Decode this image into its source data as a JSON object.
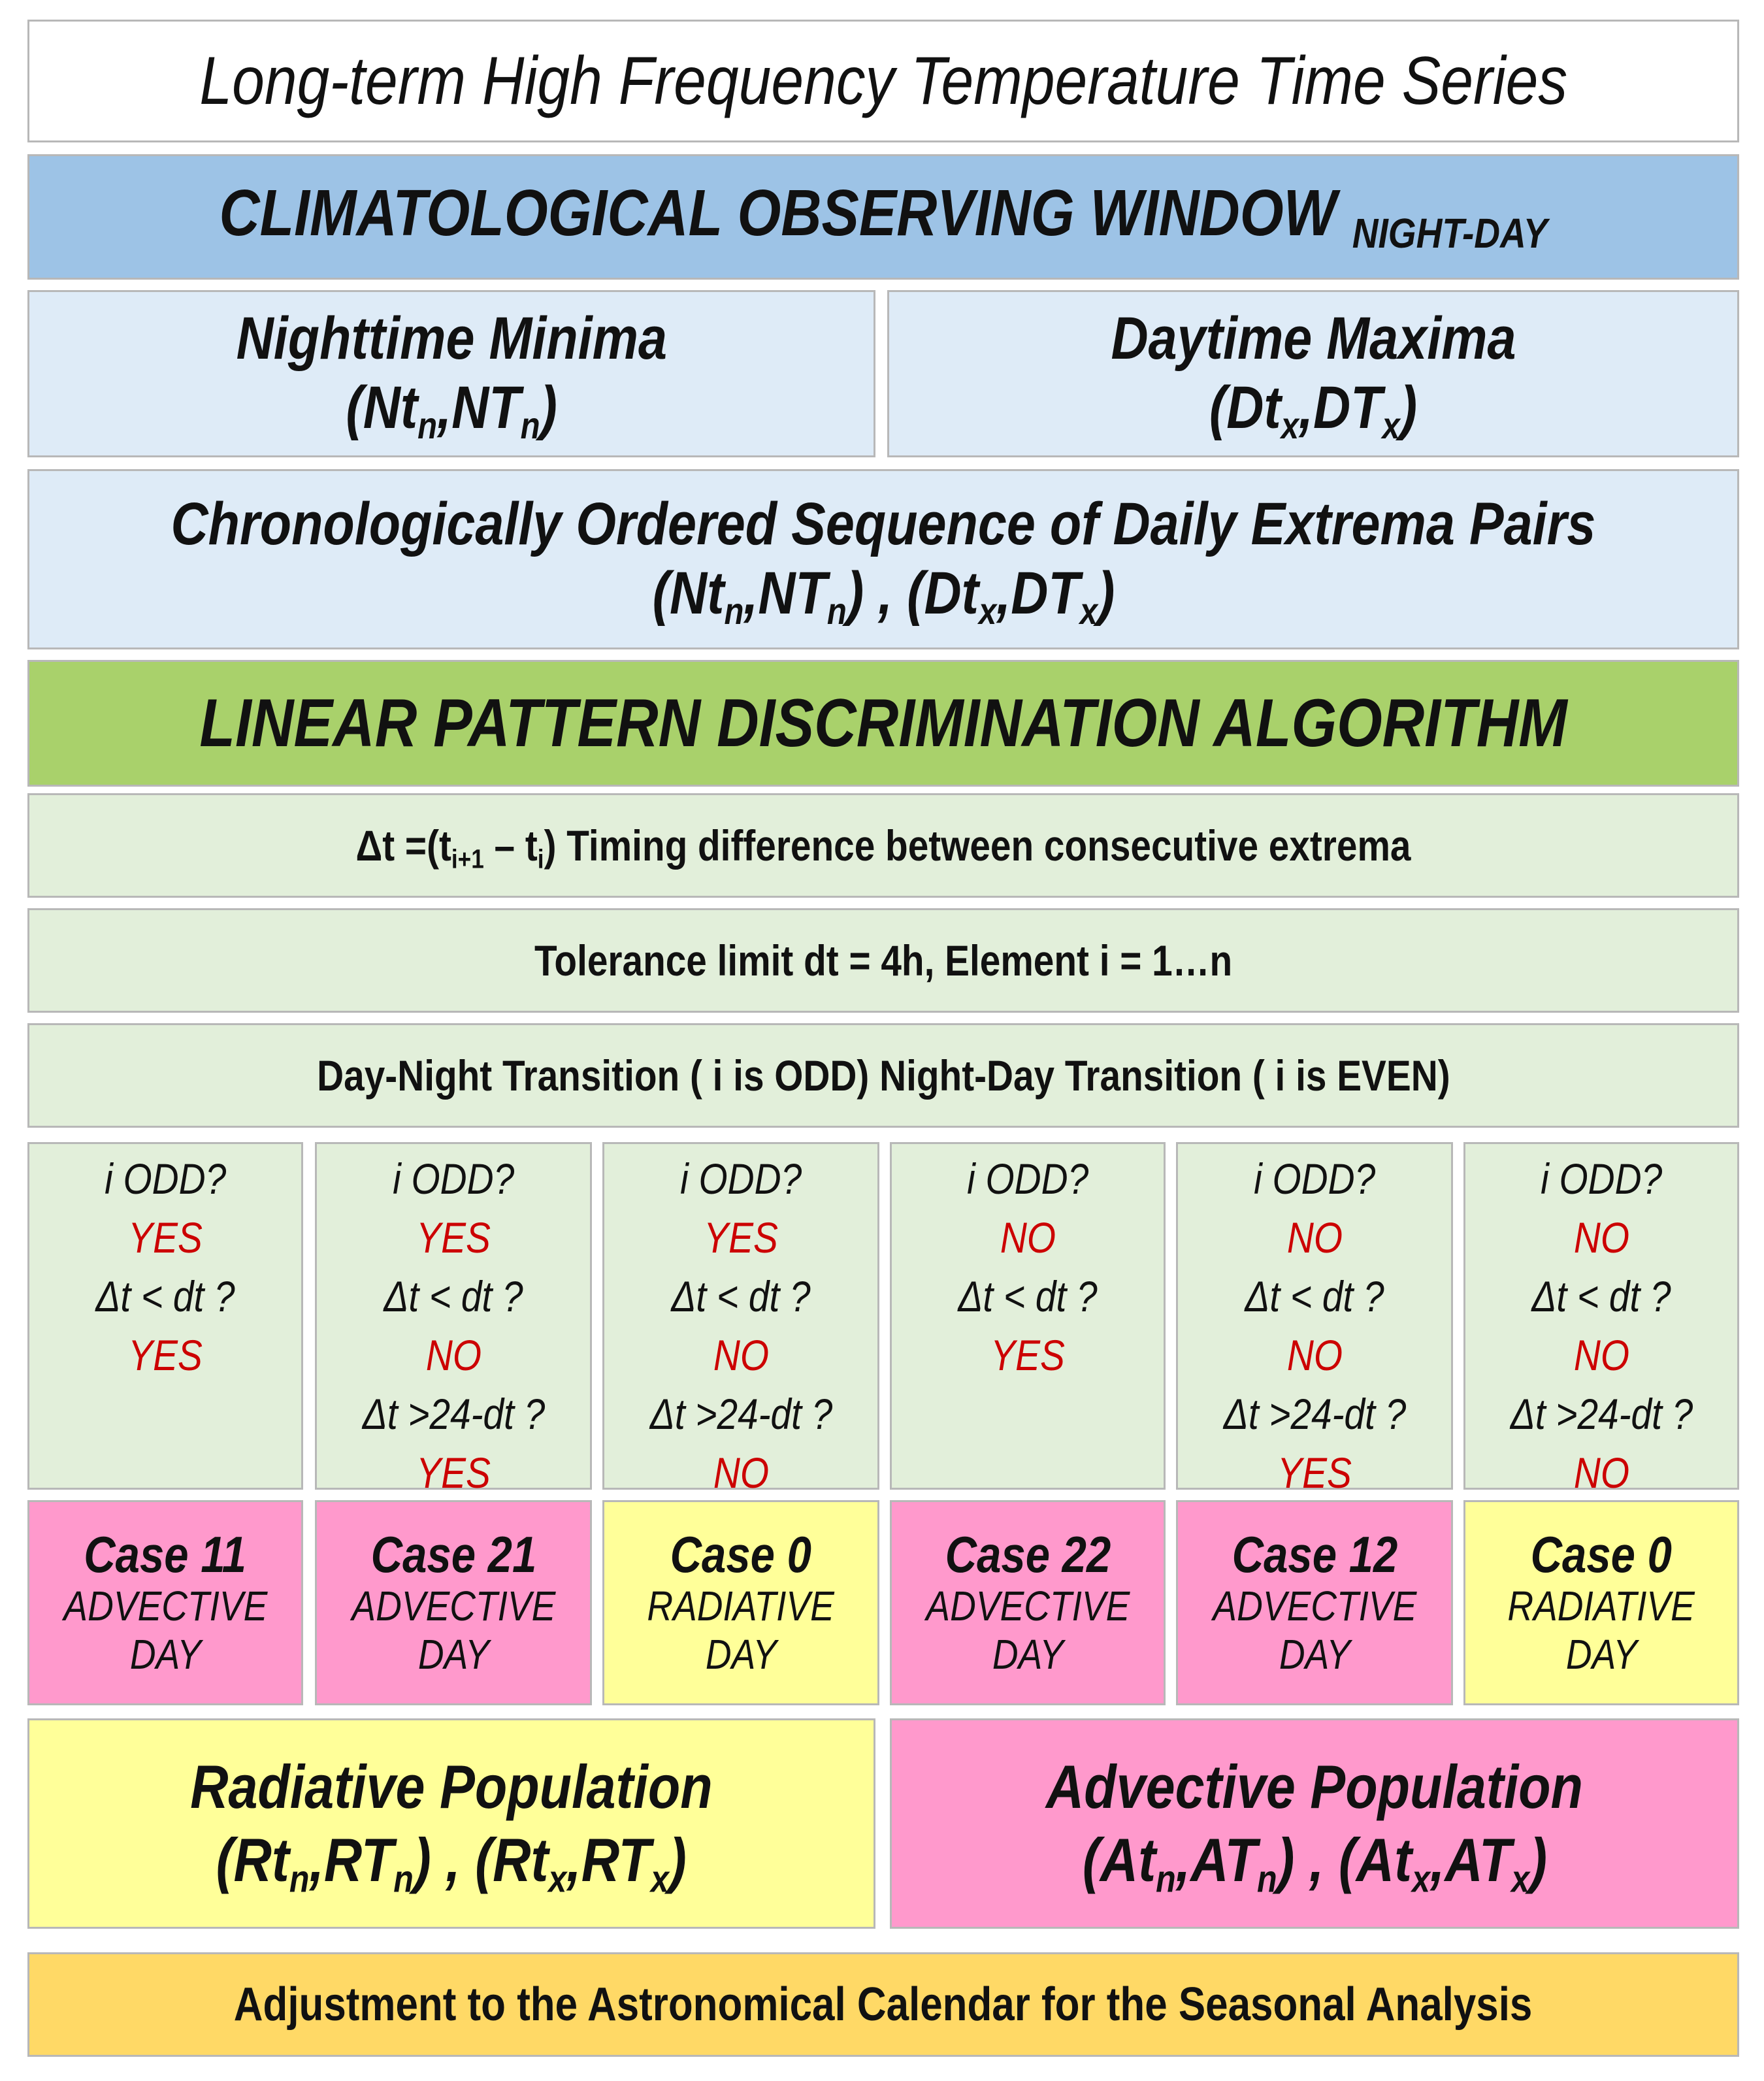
{
  "title": "Long-term High Frequency Temperature Time Series",
  "observing_window": {
    "main": "CLIMATOLOGICAL OBSERVING WINDOW",
    "sub": "NIGHT-DAY"
  },
  "minima": {
    "label": "Nighttime Minima",
    "n1": "Nt",
    "n1_sub": "n",
    "n2": "NT",
    "n2_sub": "n"
  },
  "maxima": {
    "label": "Daytime Maxima",
    "n1": "Dt",
    "n1_sub": "x",
    "n2": "DT",
    "n2_sub": "x"
  },
  "sequence": {
    "label": "Chronologically Ordered Sequence of Daily Extrema Pairs"
  },
  "algorithm": "LINEAR PATTERN DISCRIMINATION ALGORITHM",
  "timing": {
    "prefix": "Δt =(t",
    "sub1": "i+1",
    "mid": " – t",
    "sub2": "i",
    "suffix": ") Timing difference between consecutive extrema"
  },
  "tolerance": "Tolerance limit  dt = 4h, Element i = 1…n",
  "transition": "Day-Night Transition ( i is ODD) Night-Day Transition ( i is EVEN)",
  "questions": [
    {
      "q1": "i ODD?",
      "a1": "YES",
      "q2": "Δt < dt ?",
      "a2": "YES",
      "q3": "",
      "a3": ""
    },
    {
      "q1": "i ODD?",
      "a1": "YES",
      "q2": "Δt < dt ?",
      "a2": "NO",
      "q3": "Δt >24-dt ?",
      "a3": "YES"
    },
    {
      "q1": "i ODD?",
      "a1": "YES",
      "q2": "Δt < dt ?",
      "a2": "NO",
      "q3": "Δt >24-dt ?",
      "a3": "NO"
    },
    {
      "q1": "i ODD?",
      "a1": "NO",
      "q2": "Δt < dt ?",
      "a2": "YES",
      "q3": "",
      "a3": ""
    },
    {
      "q1": "i ODD?",
      "a1": "NO",
      "q2": "Δt < dt ?",
      "a2": "NO",
      "q3": "Δt >24-dt ?",
      "a3": "YES"
    },
    {
      "q1": "i ODD?",
      "a1": "NO",
      "q2": "Δt < dt ?",
      "a2": "NO",
      "q3": "Δt >24-dt ?",
      "a3": "NO"
    }
  ],
  "cases": [
    {
      "title": "Case 11",
      "type": "ADVECTIVE",
      "unit": "DAY"
    },
    {
      "title": "Case 21",
      "type": "ADVECTIVE",
      "unit": "DAY"
    },
    {
      "title": "Case 0",
      "type": "RADIATIVE",
      "unit": "DAY"
    },
    {
      "title": "Case 22",
      "type": "ADVECTIVE",
      "unit": "DAY"
    },
    {
      "title": "Case 12",
      "type": "ADVECTIVE",
      "unit": "DAY"
    },
    {
      "title": "Case 0",
      "type": "RADIATIVE",
      "unit": "DAY"
    }
  ],
  "radiative": {
    "label": "Radiative Population",
    "a": "Rt",
    "a_sub": "n",
    "b": "RT",
    "b_sub": "n",
    "c": "Rt",
    "c_sub": "x",
    "d": "RT",
    "d_sub": "x"
  },
  "advective": {
    "label": "Advective Population",
    "a": "At",
    "a_sub": "n",
    "b": "AT",
    "b_sub": "n",
    "c": "At",
    "c_sub": "x",
    "d": "AT",
    "d_sub": "x"
  },
  "adjustment": "Adjustment to the Astronomical Calendar for the Seasonal Analysis",
  "colors": {
    "blue": "#9dc3e6",
    "light_blue": "#deebf7",
    "green": "#a9d16b",
    "light_green": "#e2efda",
    "pink": "#ff99cc",
    "yellow": "#ffff99",
    "orange": "#ffd966",
    "answer_red": "#cc0000"
  }
}
